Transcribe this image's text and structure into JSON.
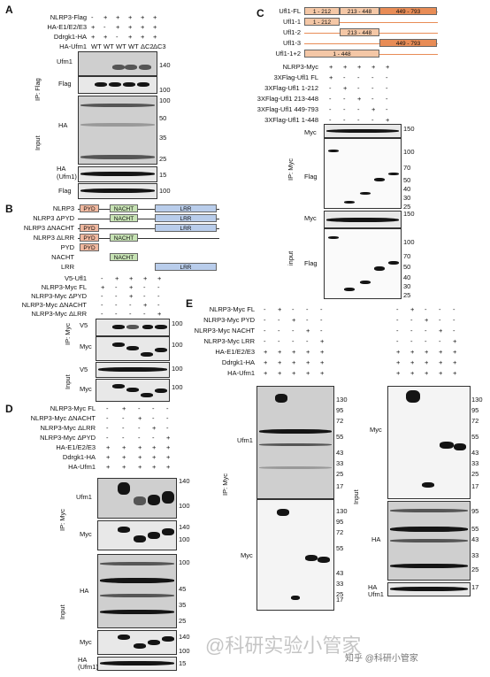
{
  "panels": {
    "A": "A",
    "B": "B",
    "C": "C",
    "D": "D",
    "E": "E"
  },
  "A": {
    "rows": [
      "NLRP3-Flag",
      "HA-E1/E2/E3",
      "Ddrgk1-HA",
      "HA-Ufm1"
    ],
    "signs": [
      [
        "-",
        "+",
        "+",
        "+",
        "+",
        "+"
      ],
      [
        "+",
        "-",
        "+",
        "+",
        "+",
        "+"
      ],
      [
        "+",
        "+",
        "-",
        "+",
        "+",
        "+"
      ],
      [
        "WT",
        "WT",
        "WT",
        "WT",
        "ΔC2",
        "ΔC3"
      ]
    ],
    "ip": "IP: Flag",
    "input": "Input",
    "blots": [
      "Ufm1",
      "Flag",
      "HA",
      "HA\n(Ufm1)",
      "Flag"
    ],
    "mw": [
      "140",
      "100",
      "100",
      "50",
      "35",
      "25",
      "15",
      "100"
    ]
  },
  "B": {
    "domains": [
      "NLRP3",
      "NLRP3 ΔPYD",
      "NLRP3 ΔNACHT",
      "NLRP3 ΔLRR",
      "PYD",
      "NACHT",
      "LRR"
    ],
    "labels": {
      "pyd": "PYD",
      "nacht": "NACHT",
      "lrr": "LRR"
    },
    "rows": [
      "V5-Ufl1",
      "NLRP3-Myc FL",
      "NLRP3-Myc ΔPYD",
      "NLRP3-Myc ΔNACHT",
      "NLRP3-Myc ΔLRR"
    ],
    "ip": "IP: Myc",
    "input": "Input",
    "blots": [
      "V5",
      "Myc",
      "V5",
      "Myc"
    ],
    "mw": [
      "100",
      "100",
      "100",
      "100"
    ]
  },
  "C": {
    "constructs": [
      "Ufl1-FL",
      "Ufl1-1",
      "Ufl1-2",
      "Ufl1-3",
      "Ufl1-1+2"
    ],
    "segs": [
      "1 - 212",
      "213 - 448",
      "449 - 793",
      "1 - 212",
      "213 - 448",
      "449 - 793",
      "1 - 448"
    ],
    "rows": [
      "NLRP3-Myc",
      "3XFlag-Ufl1 FL",
      "3XFlag-Ufl1 1-212",
      "3XFlag-Ufl1 213-448",
      "3XFlag-Ufl1 449-793",
      "3XFlag-Ufl1 1-448"
    ],
    "ip": "IP: Myc",
    "input": "input",
    "blots": [
      "Myc",
      "Flag",
      "Myc",
      "Flag"
    ],
    "mw1": [
      "150",
      "100",
      "70",
      "50",
      "40",
      "30",
      "25"
    ],
    "mw2": [
      "150",
      "100",
      "70",
      "50",
      "40",
      "30",
      "25"
    ]
  },
  "D": {
    "rows": [
      "NLRP3-Myc FL",
      "NLRP3-Myc ΔNACHT",
      "NLRP3-Myc ΔLRR",
      "NLRP3-Myc ΔPYD",
      "HA-E1/E2/E3",
      "Ddrgk1-HA",
      "HA-Ufm1"
    ],
    "ip": "IP: Myc",
    "input": "Input",
    "blots": [
      "Ufm1",
      "Myc",
      "HA",
      "Myc",
      "HA\n(Ufm1)"
    ],
    "mw": [
      "140",
      "100",
      "140",
      "100",
      "100",
      "45",
      "35",
      "25",
      "140",
      "100",
      "15"
    ]
  },
  "E": {
    "rows": [
      "NLRP3-Myc FL",
      "NLRP3-Myc PYD",
      "NLRP3-Myc NACHT",
      "NLRP3-Myc LRR",
      "HA-E1/E2/E3",
      "Ddrgk1-HA",
      "HA-Ufm1"
    ],
    "ip": "IP: Myc",
    "input": "Input",
    "blots": [
      "Ufm1",
      "Myc",
      "Myc",
      "HA",
      "HA\n(Ufm1)"
    ],
    "mw_left": [
      "130",
      "95",
      "72",
      "55",
      "43",
      "33",
      "25",
      "17",
      "130",
      "95",
      "72",
      "55",
      "43",
      "33",
      "25",
      "17"
    ],
    "mw_right": [
      "130",
      "95",
      "72",
      "55",
      "43",
      "33",
      "25",
      "17",
      "95",
      "55",
      "43",
      "33",
      "25",
      "17"
    ]
  },
  "watermark": [
    "@科研实验小管家",
    "知乎 @科研小管家"
  ]
}
